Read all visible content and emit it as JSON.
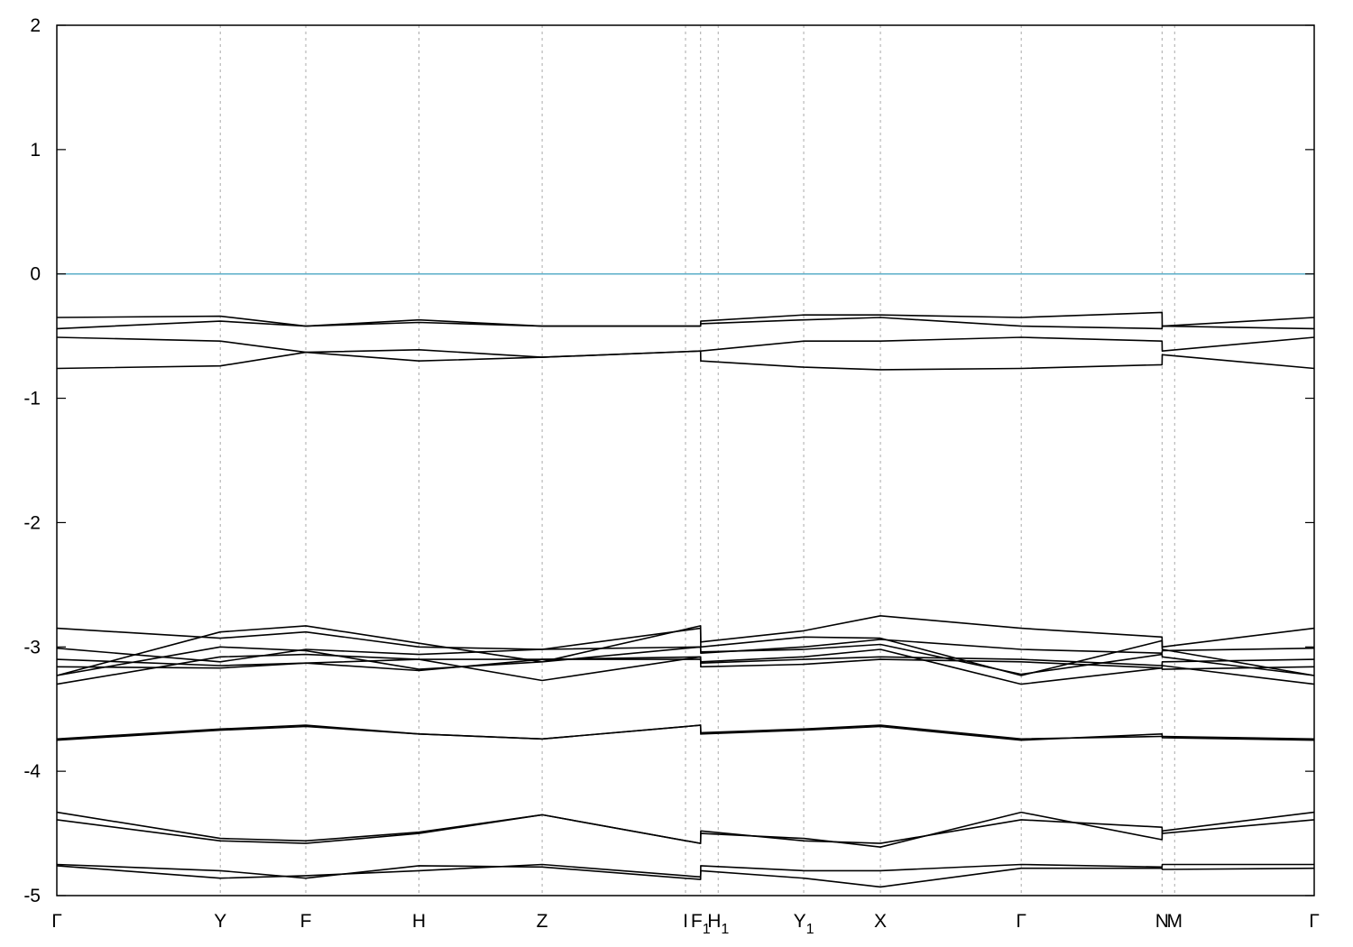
{
  "chart_data": {
    "type": "line",
    "title": "",
    "xlabel": "",
    "ylabel": "",
    "ylim": [
      -5,
      2
    ],
    "yticks": [
      "2",
      "1",
      "0",
      "-1",
      "-2",
      "-3",
      "-4",
      "-5"
    ],
    "yticks_values": [
      2,
      1,
      0,
      -1,
      -2,
      -3,
      -4,
      -5
    ],
    "kpath": [
      {
        "label": "Γ",
        "sub": "",
        "x": 0.0
      },
      {
        "label": "Y",
        "sub": "",
        "x": 0.13
      },
      {
        "label": "F",
        "sub": "",
        "x": 0.198
      },
      {
        "label": "H",
        "sub": "",
        "x": 0.288
      },
      {
        "label": "Z",
        "sub": "",
        "x": 0.386
      },
      {
        "label": "I",
        "sub": "",
        "x": 0.5
      },
      {
        "label": "F",
        "sub": "1",
        "x": 0.512
      },
      {
        "label": "H",
        "sub": "1",
        "x": 0.526
      },
      {
        "label": "Y",
        "sub": "1",
        "x": 0.594
      },
      {
        "label": "X",
        "sub": "",
        "x": 0.655
      },
      {
        "label": "Γ",
        "sub": "",
        "x": 0.767
      },
      {
        "label": "N",
        "sub": "",
        "x": 0.879
      },
      {
        "label": "M",
        "sub": "",
        "x": 0.889
      },
      {
        "label": "Γ",
        "sub": "",
        "x": 1.0
      }
    ],
    "grid": "vertical dashed at k-points",
    "fermi_level": {
      "y": 0,
      "color": "#5aaec8"
    },
    "series": [
      {
        "x": [
          0,
          0.13,
          0.198,
          0.288,
          0.386,
          0.512,
          0.5121,
          0.594,
          0.655,
          0.767,
          0.879,
          0.8791,
          1.0
        ],
        "y": [
          -0.35,
          -0.34,
          -0.42,
          -0.37,
          -0.42,
          -0.42,
          -0.38,
          -0.33,
          -0.33,
          -0.35,
          -0.31,
          -0.42,
          -0.35
        ]
      },
      {
        "x": [
          0,
          0.13,
          0.198,
          0.288,
          0.386,
          0.512,
          0.5121,
          0.594,
          0.655,
          0.767,
          0.879,
          0.8791,
          1.0
        ],
        "y": [
          -0.44,
          -0.38,
          -0.42,
          -0.39,
          -0.42,
          -0.42,
          -0.4,
          -0.37,
          -0.35,
          -0.42,
          -0.44,
          -0.42,
          -0.44
        ]
      },
      {
        "x": [
          0,
          0.13,
          0.198,
          0.288,
          0.386,
          0.512,
          0.5121,
          0.594,
          0.655,
          0.767,
          0.879,
          0.8791,
          1.0
        ],
        "y": [
          -0.51,
          -0.54,
          -0.63,
          -0.61,
          -0.67,
          -0.62,
          -0.62,
          -0.54,
          -0.54,
          -0.51,
          -0.54,
          -0.62,
          -0.51
        ]
      },
      {
        "x": [
          0,
          0.13,
          0.198,
          0.288,
          0.386,
          0.512,
          0.5121,
          0.594,
          0.655,
          0.767,
          0.879,
          0.8791,
          1.0
        ],
        "y": [
          -0.76,
          -0.74,
          -0.63,
          -0.7,
          -0.67,
          -0.62,
          -0.7,
          -0.75,
          -0.77,
          -0.76,
          -0.73,
          -0.65,
          -0.76
        ]
      },
      {
        "x": [
          0,
          0.13,
          0.198,
          0.288,
          0.386,
          0.512,
          0.5121,
          0.594,
          0.655,
          0.767,
          0.879,
          0.8791,
          1.0
        ],
        "y": [
          -2.85,
          -2.93,
          -2.88,
          -3.0,
          -3.02,
          -2.85,
          -2.96,
          -2.87,
          -2.75,
          -2.85,
          -2.92,
          -3.0,
          -2.85
        ]
      },
      {
        "x": [
          0,
          0.13,
          0.198,
          0.288,
          0.386,
          0.512,
          0.5121,
          0.594,
          0.655,
          0.767,
          0.879,
          0.8791,
          1.0
        ],
        "y": [
          -3.23,
          -2.88,
          -2.83,
          -2.97,
          -3.12,
          -2.83,
          -3.0,
          -2.92,
          -2.93,
          -3.23,
          -2.95,
          -3.02,
          -3.23
        ]
      },
      {
        "x": [
          0,
          0.13,
          0.198,
          0.288,
          0.386,
          0.512,
          0.5121,
          0.594,
          0.655,
          0.767,
          0.879,
          0.8791,
          1.0
        ],
        "y": [
          -3.01,
          -3.12,
          -3.02,
          -3.06,
          -3.02,
          -3.0,
          -3.05,
          -3.0,
          -2.94,
          -3.02,
          -3.05,
          -3.03,
          -3.01
        ]
      },
      {
        "x": [
          0,
          0.13,
          0.198,
          0.288,
          0.386,
          0.512,
          0.5121,
          0.594,
          0.655,
          0.767,
          0.879,
          0.8791,
          1.0
        ],
        "y": [
          -3.23,
          -3.0,
          -3.03,
          -3.18,
          -3.12,
          -3.0,
          -3.04,
          -3.02,
          -2.98,
          -3.22,
          -3.06,
          -3.08,
          -3.23
        ]
      },
      {
        "x": [
          0,
          0.13,
          0.198,
          0.288,
          0.386,
          0.512,
          0.5121,
          0.594,
          0.655,
          0.767,
          0.879,
          0.8791,
          1.0
        ],
        "y": [
          -3.1,
          -3.15,
          -3.13,
          -3.1,
          -3.1,
          -3.1,
          -3.13,
          -3.1,
          -3.08,
          -3.1,
          -3.15,
          -3.12,
          -3.1
        ]
      },
      {
        "x": [
          0,
          0.13,
          0.198,
          0.288,
          0.386,
          0.512,
          0.5121,
          0.594,
          0.655,
          0.767,
          0.879,
          0.8791,
          1.0
        ],
        "y": [
          -3.3,
          -3.08,
          -3.06,
          -3.1,
          -3.27,
          -3.08,
          -3.12,
          -3.08,
          -3.02,
          -3.3,
          -3.17,
          -3.15,
          -3.3
        ]
      },
      {
        "x": [
          0,
          0.13,
          0.198,
          0.288,
          0.386,
          0.512,
          0.5121,
          0.594,
          0.655,
          0.767,
          0.879,
          0.8791,
          1.0
        ],
        "y": [
          -3.16,
          -3.17,
          -3.13,
          -3.19,
          -3.1,
          -3.08,
          -3.16,
          -3.14,
          -3.1,
          -3.12,
          -3.17,
          -3.18,
          -3.16
        ]
      },
      {
        "x": [
          0,
          0.13,
          0.198,
          0.288,
          0.386,
          0.512,
          0.5121,
          0.594,
          0.655,
          0.767,
          0.879,
          0.8791,
          1.0
        ],
        "y": [
          -3.74,
          -3.66,
          -3.63,
          -3.7,
          -3.74,
          -3.63,
          -3.69,
          -3.66,
          -3.63,
          -3.74,
          -3.72,
          -3.72,
          -3.74
        ]
      },
      {
        "x": [
          0,
          0.13,
          0.198,
          0.288,
          0.386,
          0.512,
          0.5121,
          0.594,
          0.655,
          0.767,
          0.879,
          0.8791,
          1.0
        ],
        "y": [
          -3.75,
          -3.67,
          -3.64,
          -3.7,
          -3.74,
          -3.63,
          -3.7,
          -3.67,
          -3.64,
          -3.75,
          -3.7,
          -3.73,
          -3.75
        ]
      },
      {
        "x": [
          0,
          0.13,
          0.198,
          0.288,
          0.386,
          0.512,
          0.5121,
          0.594,
          0.655,
          0.767,
          0.879,
          0.8791,
          1.0
        ],
        "y": [
          -4.33,
          -4.54,
          -4.56,
          -4.49,
          -4.35,
          -4.58,
          -4.5,
          -4.54,
          -4.61,
          -4.33,
          -4.55,
          -4.48,
          -4.33
        ]
      },
      {
        "x": [
          0,
          0.13,
          0.198,
          0.288,
          0.386,
          0.512,
          0.5121,
          0.594,
          0.655,
          0.767,
          0.879,
          0.8791,
          1.0
        ],
        "y": [
          -4.39,
          -4.56,
          -4.58,
          -4.5,
          -4.35,
          -4.58,
          -4.48,
          -4.56,
          -4.58,
          -4.39,
          -4.45,
          -4.5,
          -4.39
        ]
      },
      {
        "x": [
          0,
          0.13,
          0.198,
          0.288,
          0.386,
          0.512,
          0.5121,
          0.594,
          0.655,
          0.767,
          0.879,
          0.8791,
          1.0
        ],
        "y": [
          -4.75,
          -4.8,
          -4.86,
          -4.76,
          -4.77,
          -4.87,
          -4.76,
          -4.8,
          -4.8,
          -4.75,
          -4.77,
          -4.75,
          -4.75
        ]
      },
      {
        "x": [
          0,
          0.13,
          0.198,
          0.288,
          0.386,
          0.512,
          0.5121,
          0.594,
          0.655,
          0.767,
          0.879,
          0.8791,
          1.0
        ],
        "y": [
          -4.76,
          -4.86,
          -4.84,
          -4.8,
          -4.75,
          -4.85,
          -4.8,
          -4.86,
          -4.93,
          -4.78,
          -4.78,
          -4.79,
          -4.78
        ]
      }
    ]
  }
}
